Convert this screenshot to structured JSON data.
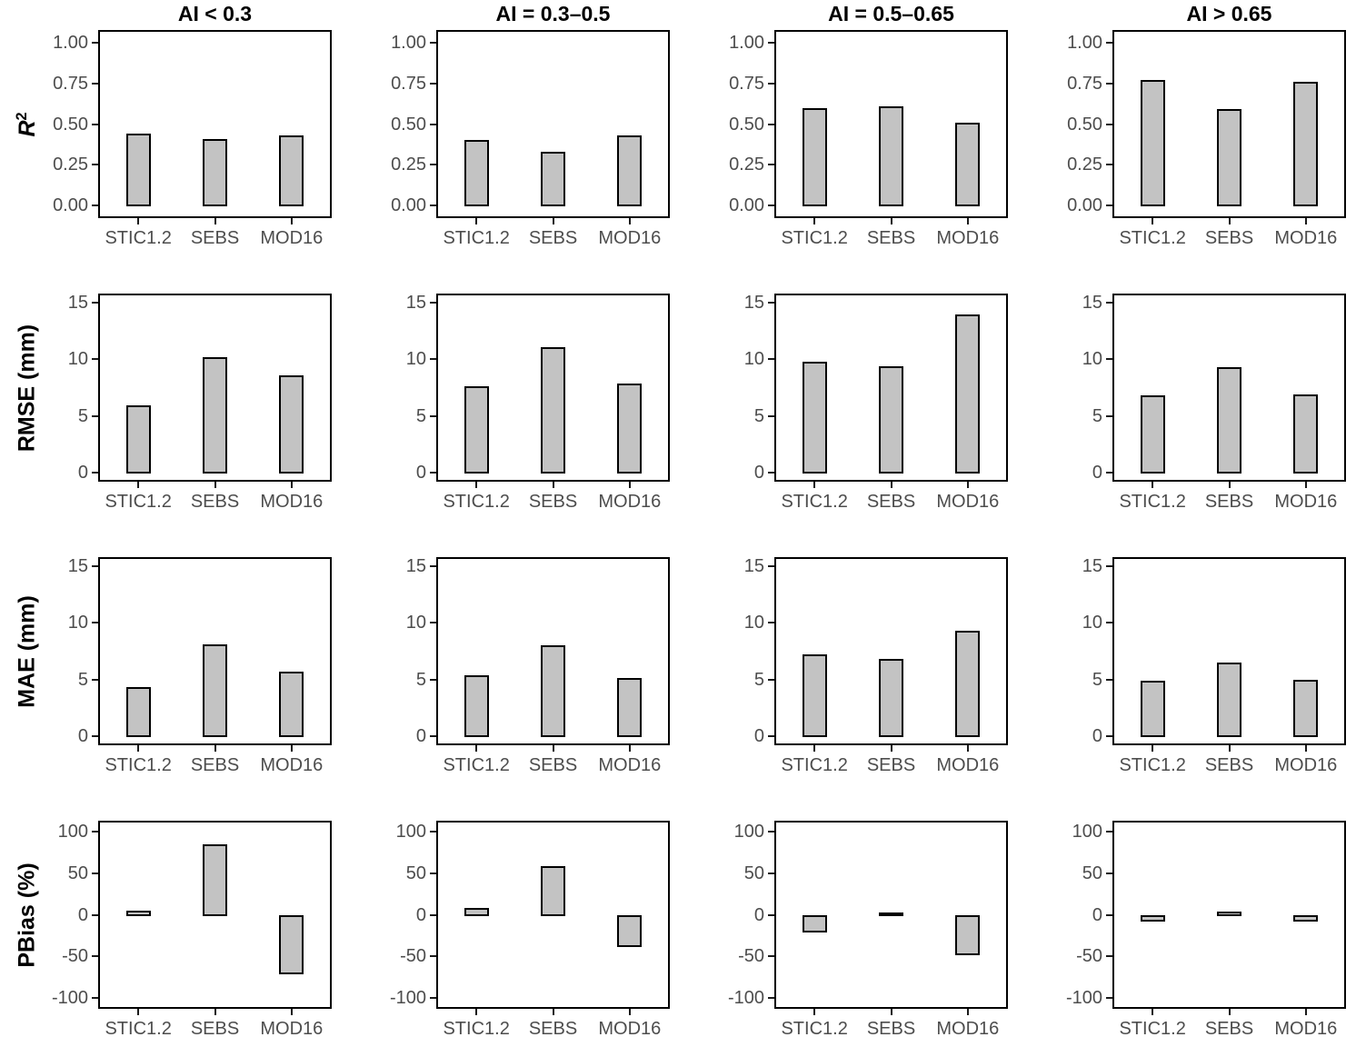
{
  "figure": {
    "background": "#FFFFFF",
    "models": [
      "STIC1.2",
      "SEBS",
      "MOD16"
    ],
    "facets": [
      "AI < 0.3",
      "AI = 0.3–0.5",
      "AI = 0.5–0.65",
      "AI > 0.65"
    ],
    "colors": {
      "bar_fill": "#C3C3C3",
      "bar_stroke": "#000000",
      "panel_border": "#000000",
      "tick_mark": "#1A1A1A",
      "tick_label": "#4D4D4D",
      "axis_title": "#000000",
      "facet_title": "#000000"
    }
  },
  "chart_data": [
    {
      "type": "bar",
      "metric": "R2",
      "ylabel": "R²",
      "ylabel_base": "R",
      "ylabel_sup": "2",
      "ylabel_italic": true,
      "categories": [
        "STIC1.2",
        "SEBS",
        "MOD16"
      ],
      "ticks": [
        1,
        0.75,
        0.5,
        0.25,
        0
      ],
      "tick_labels": [
        "1.00",
        "0.75",
        "0.50",
        "0.25",
        "0.00"
      ],
      "domain": [
        -0.067,
        1.067
      ],
      "grid": false,
      "legend": false,
      "panels": [
        {
          "facet": "AI < 0.3",
          "values": [
            0.44,
            0.41,
            0.43
          ]
        },
        {
          "facet": "AI = 0.3–0.5",
          "values": [
            0.4,
            0.33,
            0.43
          ]
        },
        {
          "facet": "AI = 0.5–0.65",
          "values": [
            0.6,
            0.61,
            0.51
          ]
        },
        {
          "facet": "AI > 0.65",
          "values": [
            0.77,
            0.59,
            0.76
          ]
        }
      ]
    },
    {
      "type": "bar",
      "metric": "RMSE",
      "ylabel": "RMSE (mm)",
      "categories": [
        "STIC1.2",
        "SEBS",
        "MOD16"
      ],
      "ticks": [
        15,
        10,
        5,
        0
      ],
      "tick_labels": [
        "15",
        "10",
        "5",
        "0"
      ],
      "domain": [
        -0.65,
        15.65
      ],
      "grid": false,
      "legend": false,
      "panels": [
        {
          "facet": "AI < 0.3",
          "values": [
            5.9,
            10.2,
            8.6
          ]
        },
        {
          "facet": "AI = 0.3–0.5",
          "values": [
            7.6,
            11.1,
            7.9
          ]
        },
        {
          "facet": "AI = 0.5–0.65",
          "values": [
            9.8,
            9.4,
            14.0
          ]
        },
        {
          "facet": "AI > 0.65",
          "values": [
            6.8,
            9.3,
            6.9
          ]
        }
      ]
    },
    {
      "type": "bar",
      "metric": "MAE",
      "ylabel": "MAE (mm)",
      "categories": [
        "STIC1.2",
        "SEBS",
        "MOD16"
      ],
      "ticks": [
        15,
        10,
        5,
        0
      ],
      "tick_labels": [
        "15",
        "10",
        "5",
        "0"
      ],
      "domain": [
        -0.65,
        15.65
      ],
      "grid": false,
      "legend": false,
      "panels": [
        {
          "facet": "AI < 0.3",
          "values": [
            4.3,
            8.1,
            5.7
          ]
        },
        {
          "facet": "AI = 0.3–0.5",
          "values": [
            5.4,
            8.0,
            5.1
          ]
        },
        {
          "facet": "AI = 0.5–0.65",
          "values": [
            7.2,
            6.8,
            9.3
          ]
        },
        {
          "facet": "AI > 0.65",
          "values": [
            4.9,
            6.5,
            5.0
          ]
        }
      ]
    },
    {
      "type": "bar",
      "metric": "PBias",
      "ylabel": "PBias (%)",
      "categories": [
        "STIC1.2",
        "SEBS",
        "MOD16"
      ],
      "ticks": [
        100,
        50,
        0,
        -50,
        -100
      ],
      "tick_labels": [
        "100",
        "50",
        "0",
        "-50",
        "-100"
      ],
      "domain": [
        -110.7,
        110.7
      ],
      "grid": false,
      "legend": false,
      "panels": [
        {
          "facet": "AI < 0.3",
          "values": [
            5,
            85,
            -70
          ]
        },
        {
          "facet": "AI = 0.3–0.5",
          "values": [
            8,
            58,
            -38
          ]
        },
        {
          "facet": "AI = 0.5–0.65",
          "values": [
            -20,
            1,
            -47
          ]
        },
        {
          "facet": "AI > 0.65",
          "values": [
            -7,
            4,
            -7
          ]
        }
      ]
    }
  ]
}
